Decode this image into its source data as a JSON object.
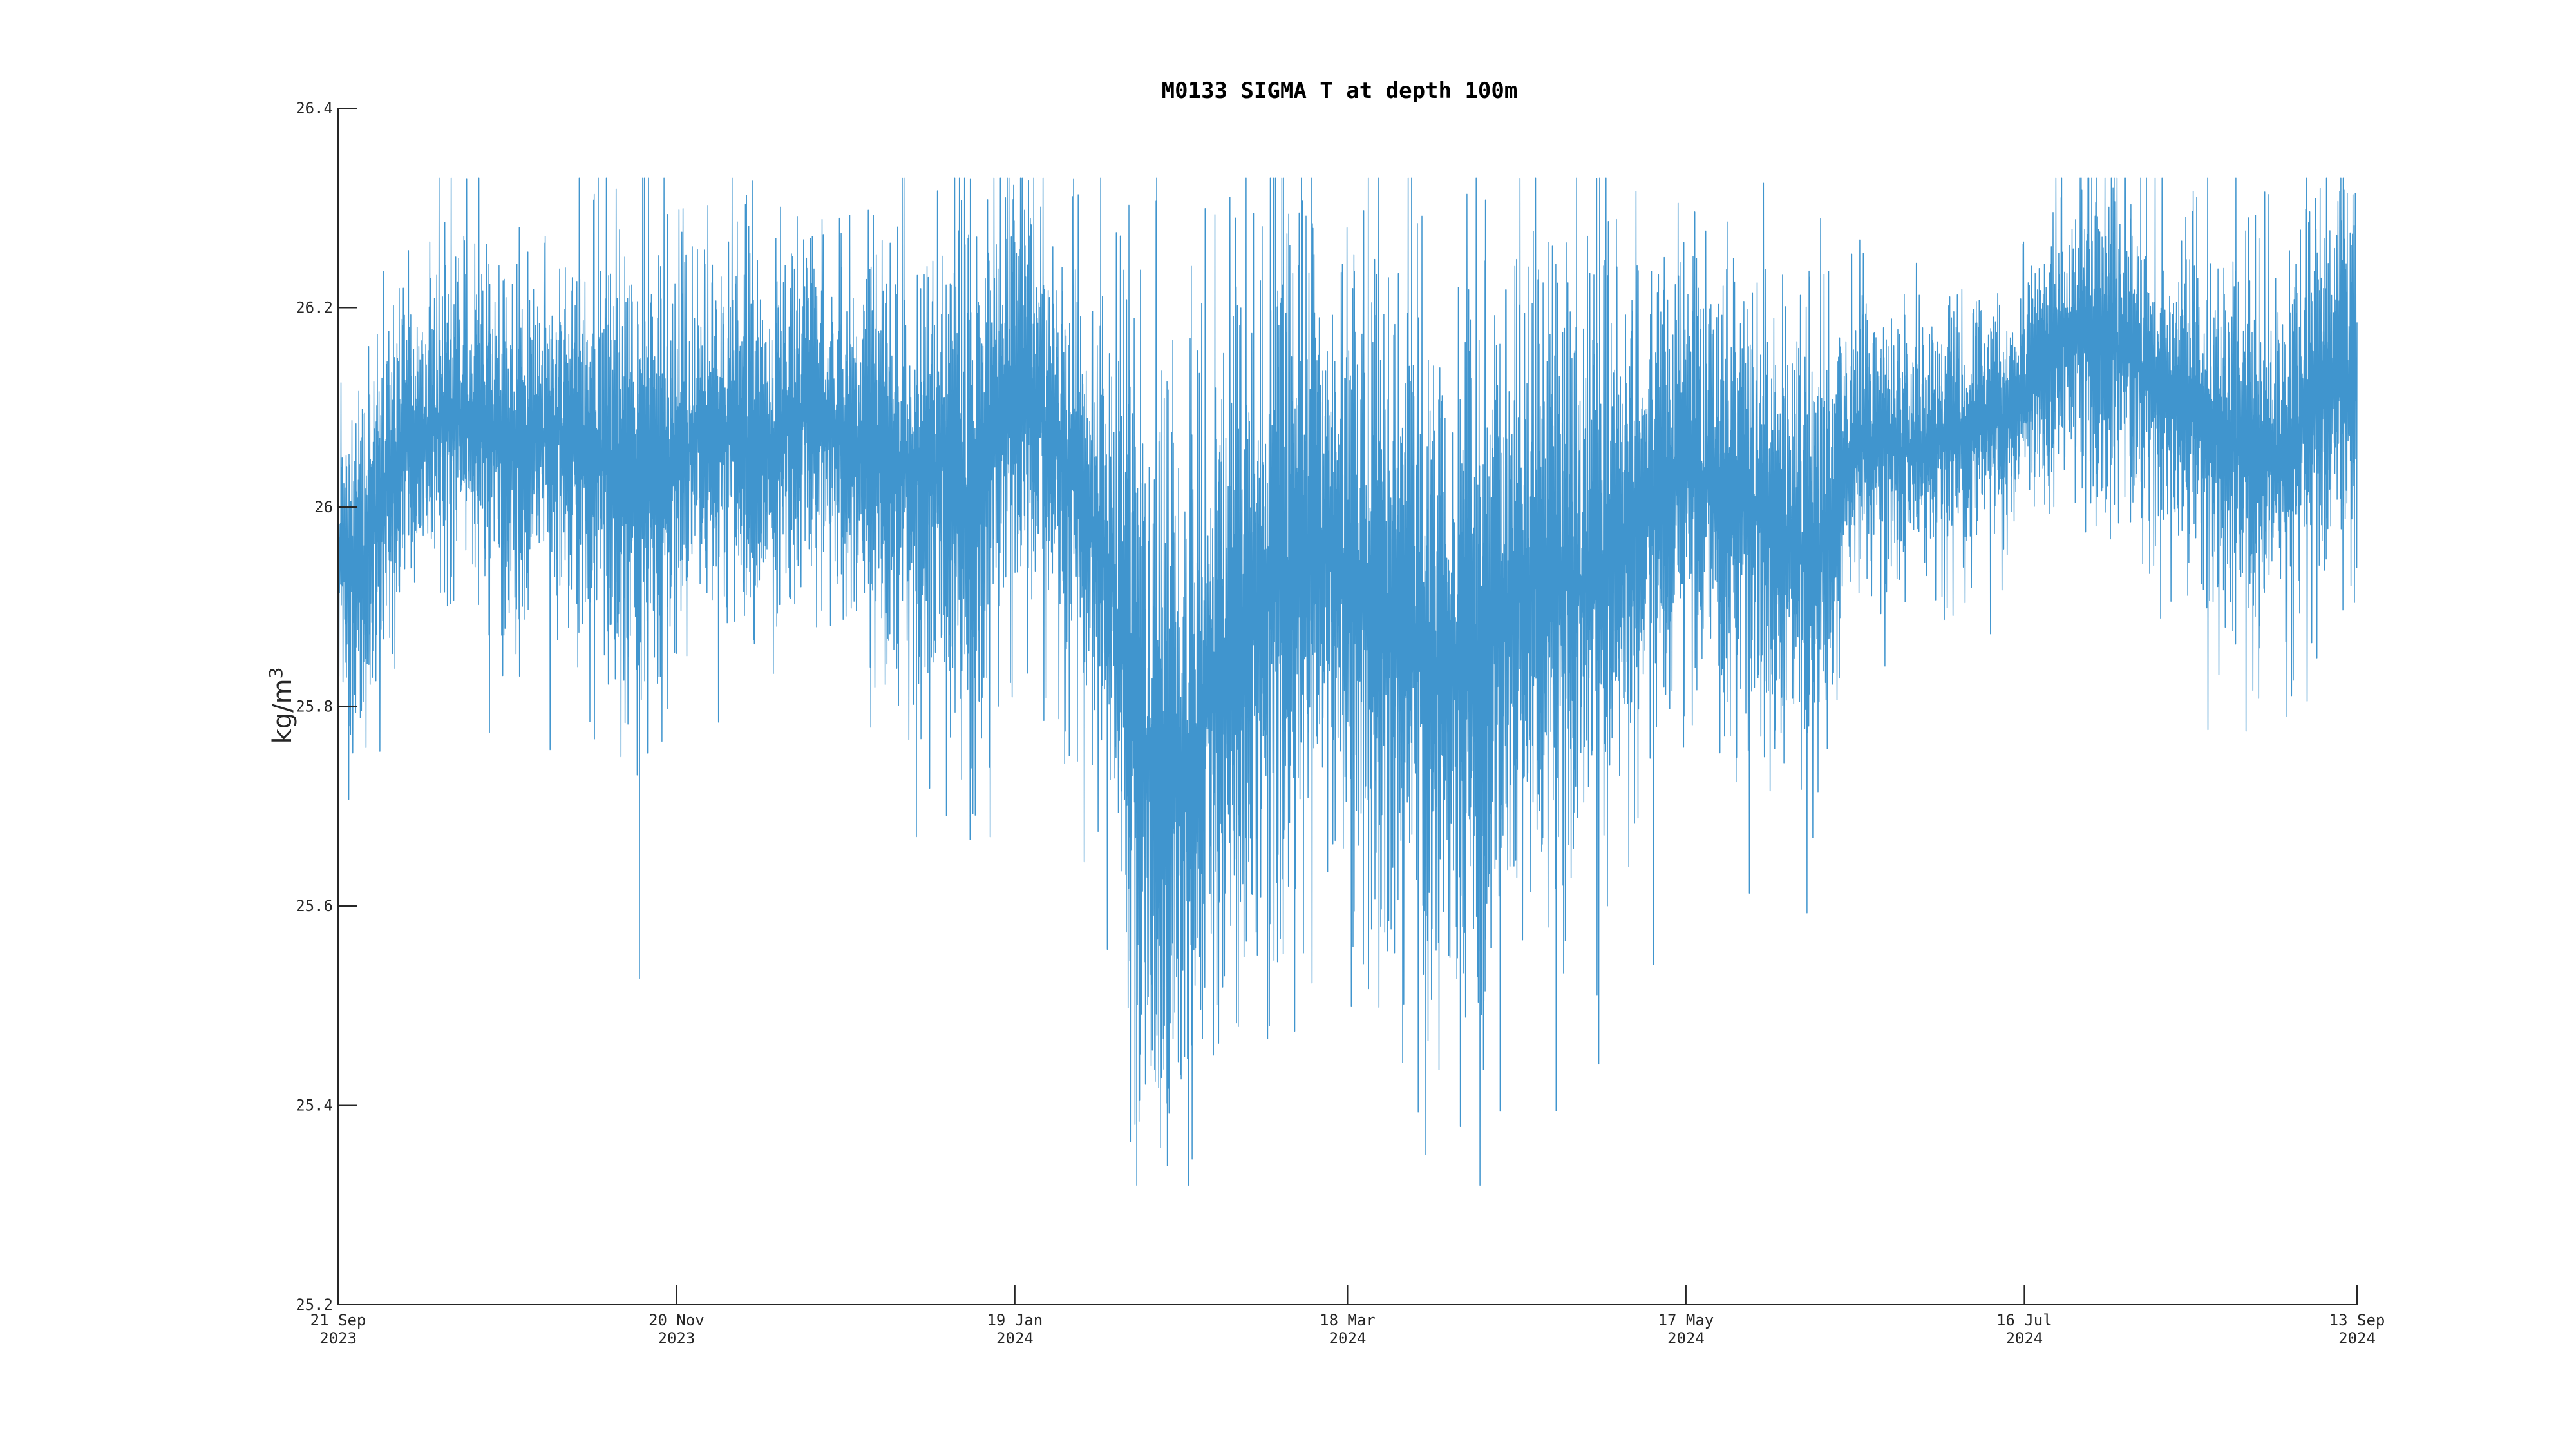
{
  "chart_data": {
    "type": "line",
    "title": "M0133 SIGMA T at depth 100m",
    "ylabel": "kg/m",
    "ylabel_superscript": "3",
    "xlabel": "",
    "ylim": [
      25.2,
      26.4
    ],
    "yticks": [
      25.2,
      25.4,
      25.6,
      25.8,
      26,
      26.2,
      26.4
    ],
    "ytick_labels": [
      "25.2",
      "25.4",
      "25.6",
      "25.8",
      "26",
      "26.2",
      "26.4"
    ],
    "xlim": [
      "2023-09-21",
      "2024-09-13"
    ],
    "xticks": [
      {
        "date": "2023-09-21",
        "line1": "21 Sep",
        "line2": "2023"
      },
      {
        "date": "2023-11-20",
        "line1": "20 Nov",
        "line2": "2023"
      },
      {
        "date": "2024-01-19",
        "line1": "19 Jan",
        "line2": "2024"
      },
      {
        "date": "2024-03-18",
        "line1": "18 Mar",
        "line2": "2024"
      },
      {
        "date": "2024-05-17",
        "line1": "17 May",
        "line2": "2024"
      },
      {
        "date": "2024-07-16",
        "line1": "16 Jul",
        "line2": "2024"
      },
      {
        "date": "2024-09-13",
        "line1": "13 Sep",
        "line2": "2024"
      }
    ],
    "grid": false,
    "series_color": "#0072BD",
    "series": [
      {
        "x": [
          "2023-09-21",
          "2023-09-25",
          "2023-09-29",
          "2023-10-03",
          "2023-10-07",
          "2023-10-11",
          "2023-10-15",
          "2023-10-19",
          "2023-10-23",
          "2023-10-27",
          "2023-10-31",
          "2023-11-04",
          "2023-11-08",
          "2023-11-12",
          "2023-11-16",
          "2023-11-20",
          "2023-11-24",
          "2023-11-28",
          "2023-12-02",
          "2023-12-06",
          "2023-12-10",
          "2023-12-14",
          "2023-12-18",
          "2023-12-22",
          "2023-12-26",
          "2023-12-30",
          "2024-01-03",
          "2024-01-07",
          "2024-01-11",
          "2024-01-15",
          "2024-01-19",
          "2024-01-23",
          "2024-01-27",
          "2024-01-31",
          "2024-02-04",
          "2024-02-08",
          "2024-02-12",
          "2024-02-16",
          "2024-02-20",
          "2024-02-24",
          "2024-02-28",
          "2024-03-03",
          "2024-03-07",
          "2024-03-11",
          "2024-03-15",
          "2024-03-19",
          "2024-03-23",
          "2024-03-27",
          "2024-03-31",
          "2024-04-04",
          "2024-04-08",
          "2024-04-12",
          "2024-04-16",
          "2024-04-20",
          "2024-04-24",
          "2024-04-28",
          "2024-05-02",
          "2024-05-06",
          "2024-05-10",
          "2024-05-14",
          "2024-05-18",
          "2024-05-22",
          "2024-05-26",
          "2024-05-30",
          "2024-06-03",
          "2024-06-07",
          "2024-06-11",
          "2024-06-15",
          "2024-06-19",
          "2024-06-23",
          "2024-06-27",
          "2024-07-01",
          "2024-07-05",
          "2024-07-09",
          "2024-07-13",
          "2024-07-17",
          "2024-07-21",
          "2024-07-25",
          "2024-07-29",
          "2024-08-02",
          "2024-08-06",
          "2024-08-10",
          "2024-08-14",
          "2024-08-18",
          "2024-08-22",
          "2024-08-26",
          "2024-08-30",
          "2024-09-03",
          "2024-09-07",
          "2024-09-11",
          "2024-09-13"
        ],
        "y": [
          25.95,
          25.93,
          26.02,
          26.06,
          26.08,
          26.1,
          26.09,
          26.08,
          26.07,
          26.07,
          26.08,
          26.06,
          26.05,
          26.04,
          26.04,
          26.05,
          26.07,
          26.08,
          26.06,
          26.06,
          26.08,
          26.09,
          26.08,
          26.06,
          26.06,
          26.04,
          26.03,
          26.05,
          26.0,
          26.08,
          26.12,
          26.1,
          26.06,
          26.0,
          25.95,
          25.85,
          25.75,
          25.72,
          25.76,
          25.82,
          25.86,
          25.9,
          25.94,
          25.96,
          25.96,
          25.93,
          25.9,
          25.88,
          25.86,
          25.84,
          25.82,
          25.86,
          25.9,
          25.93,
          25.94,
          25.92,
          25.95,
          25.98,
          26.0,
          26.03,
          26.03,
          26.02,
          26.01,
          26.0,
          25.98,
          25.95,
          25.96,
          26.05,
          26.07,
          26.06,
          26.05,
          26.07,
          26.08,
          26.1,
          26.09,
          26.12,
          26.16,
          26.18,
          26.18,
          26.16,
          26.14,
          26.12,
          26.1,
          26.08,
          26.06,
          26.04,
          26.05,
          26.08,
          26.12,
          26.13,
          26.11
        ],
        "band": [
          0.1,
          0.11,
          0.12,
          0.1,
          0.1,
          0.1,
          0.1,
          0.11,
          0.11,
          0.11,
          0.12,
          0.13,
          0.14,
          0.15,
          0.15,
          0.14,
          0.13,
          0.12,
          0.12,
          0.12,
          0.11,
          0.11,
          0.11,
          0.12,
          0.13,
          0.13,
          0.14,
          0.15,
          0.18,
          0.16,
          0.15,
          0.14,
          0.13,
          0.14,
          0.17,
          0.22,
          0.25,
          0.25,
          0.22,
          0.2,
          0.22,
          0.24,
          0.24,
          0.22,
          0.2,
          0.2,
          0.22,
          0.24,
          0.22,
          0.22,
          0.22,
          0.22,
          0.2,
          0.2,
          0.18,
          0.2,
          0.2,
          0.18,
          0.16,
          0.14,
          0.13,
          0.14,
          0.15,
          0.15,
          0.15,
          0.14,
          0.13,
          0.1,
          0.09,
          0.08,
          0.08,
          0.08,
          0.08,
          0.08,
          0.08,
          0.08,
          0.09,
          0.09,
          0.1,
          0.1,
          0.1,
          0.1,
          0.11,
          0.12,
          0.12,
          0.12,
          0.11,
          0.12,
          0.13,
          0.13,
          0.13
        ]
      }
    ]
  }
}
